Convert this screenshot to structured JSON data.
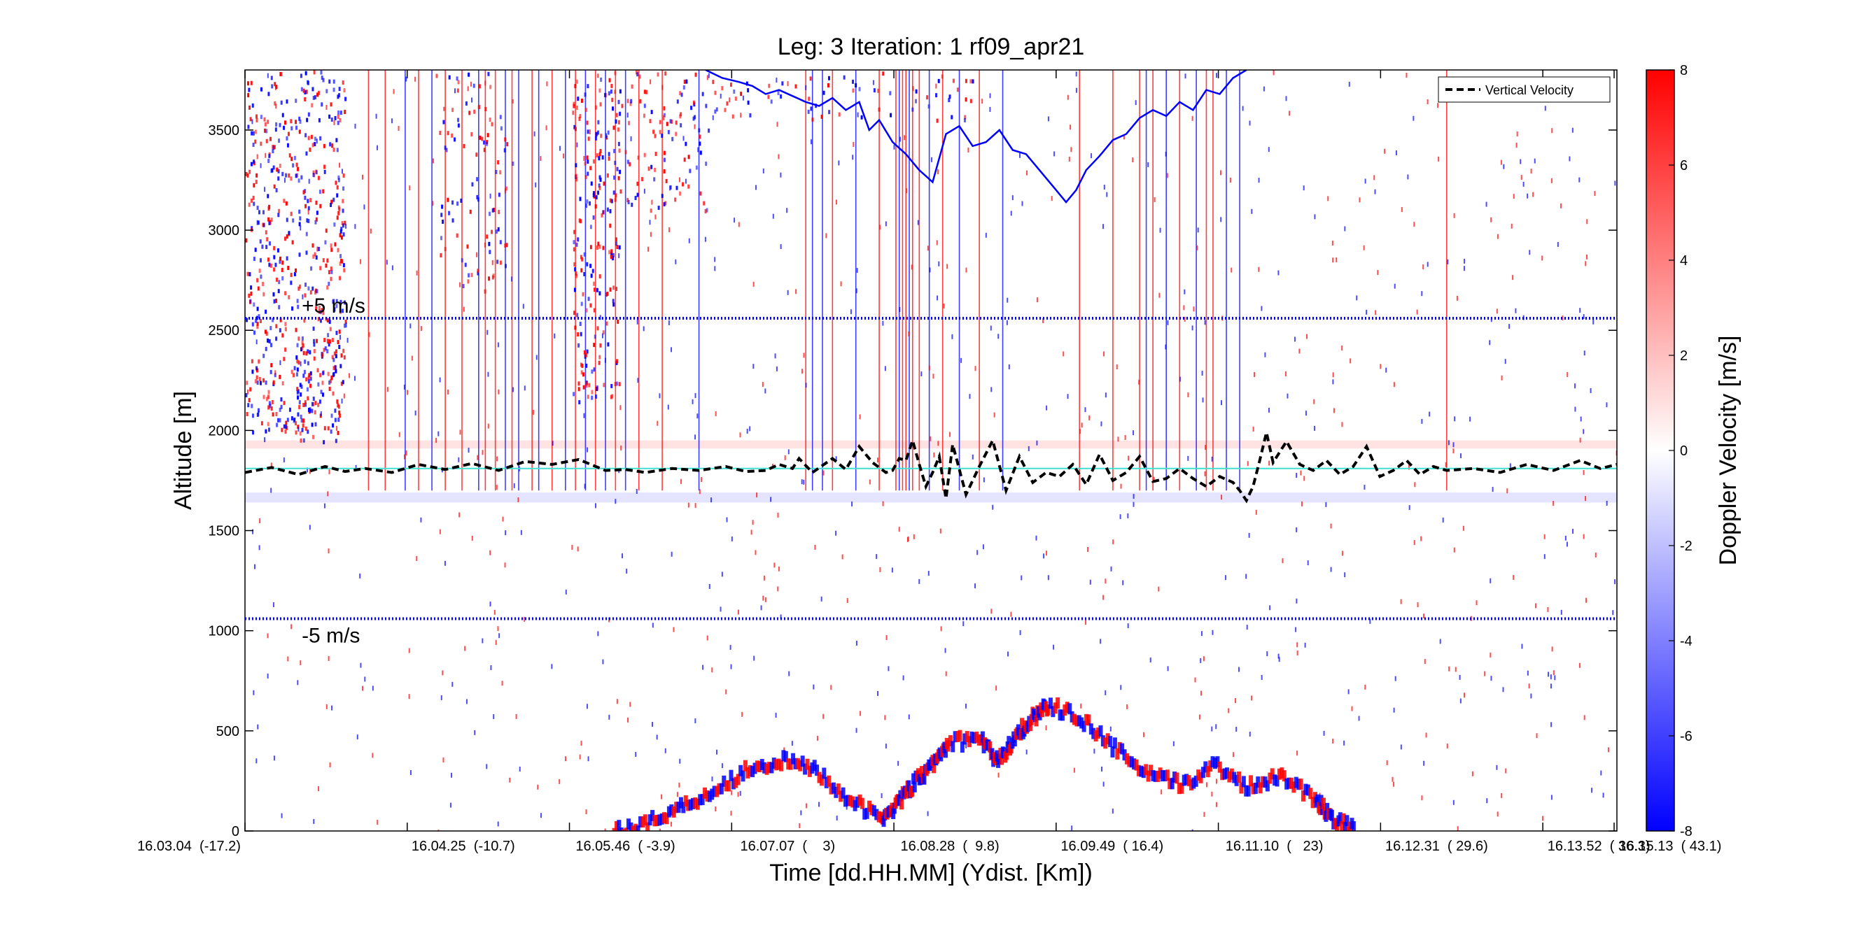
{
  "chart_data": {
    "type": "heatmap",
    "title": "Leg: 3  Iteration: 1  rf09_apr21",
    "xlabel": "Time [dd.HH.MM]    (Ydist. [Km])",
    "ylabel": "Altitude [m]",
    "xlim": [
      0,
      4110
    ],
    "ylim": [
      0,
      3800
    ],
    "x_ticks": [
      {
        "label": "16.03.04  (-17.2)",
        "value": 0
      },
      {
        "label": "16.04.25  (-10.7)",
        "value": 486
      },
      {
        "label": "16.05.46  ( -3.9)",
        "value": 972
      },
      {
        "label": "16.07.07  (    3)",
        "value": 1458
      },
      {
        "label": "16.08.28  (  9.8)",
        "value": 1944
      },
      {
        "label": "16.09.49  ( 16.4)",
        "value": 2430
      },
      {
        "label": "16.11.10  (   23)",
        "value": 2916
      },
      {
        "label": "16.12.31  ( 29.6)",
        "value": 3402
      },
      {
        "label": "16.13.52  ( 36.3)",
        "value": 3888
      },
      {
        "label": "16.15.13  ( 43.1)",
        "value": 4374
      }
    ],
    "y_ticks": [
      0,
      500,
      1000,
      1500,
      2000,
      2500,
      3000,
      3500
    ],
    "colorbar": {
      "label": "Doppler Velocity [m/s]",
      "range": [
        -8,
        8
      ],
      "ticks": [
        -8,
        -6,
        -4,
        -2,
        0,
        2,
        4,
        6,
        8
      ],
      "colors": {
        "low": "#0000ff",
        "mid": "#ffffff",
        "high": "#ff0000"
      }
    },
    "legend": {
      "placement": "top-right",
      "entries": [
        "Vertical Velocity"
      ]
    },
    "annotations": [
      {
        "text": "+5 m/s",
        "y": 2560,
        "color": "#0000ff",
        "style": "dotted"
      },
      {
        "text": "-5 m/s",
        "y": 1060,
        "color": "#0000ff",
        "style": "dotted"
      }
    ],
    "reference_line": {
      "y": 1810,
      "color": "#40e0d0"
    },
    "series": [
      {
        "name": "Vertical Velocity",
        "style": "dashed",
        "color": "#000000",
        "x": [
          0,
          80,
          160,
          240,
          300,
          360,
          440,
          520,
          600,
          680,
          760,
          840,
          920,
          1000,
          1080,
          1140,
          1200,
          1280,
          1360,
          1440,
          1500,
          1560,
          1600,
          1640,
          1660,
          1700,
          1760,
          1800,
          1840,
          1880,
          1920,
          1940,
          1960,
          1980,
          2000,
          2020,
          2040,
          2060,
          2080,
          2100,
          2120,
          2160,
          2200,
          2240,
          2280,
          2320,
          2360,
          2400,
          2440,
          2480,
          2520,
          2560,
          2600,
          2640,
          2680,
          2720,
          2760,
          2800,
          2840,
          2880,
          2920,
          2960,
          2980,
          3000,
          3020,
          3040,
          3060,
          3080,
          3120,
          3160,
          3200,
          3240,
          3280,
          3320,
          3360,
          3400,
          3440,
          3480,
          3520,
          3560,
          3600,
          3680,
          3760,
          3840,
          3920,
          4000,
          4060,
          4110
        ],
        "y": [
          1790,
          1815,
          1780,
          1820,
          1795,
          1810,
          1790,
          1830,
          1805,
          1835,
          1800,
          1845,
          1830,
          1855,
          1800,
          1805,
          1790,
          1810,
          1800,
          1820,
          1795,
          1800,
          1830,
          1810,
          1860,
          1790,
          1860,
          1805,
          1920,
          1840,
          1790,
          1800,
          1860,
          1850,
          1950,
          1830,
          1720,
          1790,
          1870,
          1660,
          1930,
          1680,
          1820,
          1950,
          1700,
          1870,
          1740,
          1790,
          1770,
          1830,
          1730,
          1880,
          1750,
          1790,
          1870,
          1745,
          1760,
          1810,
          1760,
          1720,
          1770,
          1740,
          1700,
          1650,
          1720,
          1850,
          1990,
          1840,
          1945,
          1830,
          1800,
          1850,
          1780,
          1820,
          1920,
          1770,
          1800,
          1850,
          1780,
          1820,
          1800,
          1810,
          1790,
          1830,
          1800,
          1850,
          1810,
          1830
        ]
      },
      {
        "name": "",
        "style": "solid",
        "color": "#0000ff",
        "x": [
          1380,
          1430,
          1480,
          1520,
          1560,
          1600,
          1640,
          1680,
          1720,
          1760,
          1800,
          1840,
          1870,
          1900,
          1940,
          1980,
          2020,
          2060,
          2100,
          2140,
          2180,
          2220,
          2260,
          2300,
          2340,
          2380,
          2420,
          2460,
          2490,
          2520,
          2560,
          2600,
          2640,
          2680,
          2720,
          2760,
          2800,
          2840,
          2880,
          2920,
          2960,
          3000
        ],
        "y": [
          3800,
          3760,
          3740,
          3720,
          3680,
          3700,
          3670,
          3640,
          3620,
          3660,
          3600,
          3640,
          3500,
          3550,
          3440,
          3380,
          3300,
          3240,
          3480,
          3520,
          3420,
          3440,
          3500,
          3400,
          3380,
          3300,
          3220,
          3140,
          3200,
          3300,
          3370,
          3450,
          3480,
          3560,
          3600,
          3570,
          3640,
          3600,
          3700,
          3680,
          3760,
          3800
        ]
      }
    ],
    "echo_regions": [
      {
        "kind": "speckle",
        "x0": 0,
        "x1": 300,
        "y0": 2000,
        "y1": 3800,
        "density": 0.9
      },
      {
        "kind": "speckle",
        "x0": 150,
        "x1": 280,
        "y0": 1950,
        "y1": 2500,
        "density": 0.7
      },
      {
        "kind": "speckle",
        "x0": 570,
        "x1": 800,
        "y0": 2700,
        "y1": 3800,
        "density": 0.35
      },
      {
        "kind": "speckle",
        "x0": 980,
        "x1": 1120,
        "y0": 2150,
        "y1": 3800,
        "density": 0.8
      },
      {
        "kind": "speckle",
        "x0": 1100,
        "x1": 1400,
        "y0": 3100,
        "y1": 3800,
        "density": 0.45
      },
      {
        "kind": "speckle",
        "x0": 1400,
        "x1": 2200,
        "y0": 3550,
        "y1": 3800,
        "density": 0.3
      }
    ],
    "vertical_streaks": {
      "x": [
        370,
        420,
        480,
        520,
        560,
        600,
        650,
        700,
        720,
        750,
        780,
        800,
        820,
        860,
        880,
        920,
        960,
        990,
        1020,
        1050,
        1080,
        1110,
        1140,
        1180,
        1250,
        1360,
        1680,
        1700,
        1730,
        1760,
        1830,
        1900,
        1950,
        1960,
        1970,
        1980,
        1990,
        2000,
        2020,
        2050,
        2090,
        2140,
        2200,
        2270,
        2500,
        2600,
        2680,
        2700,
        2720,
        2760,
        2800,
        2850,
        2880,
        2900,
        2940,
        2980,
        3600
      ],
      "signs": [
        1,
        1,
        -1,
        1,
        -1,
        1,
        1,
        -1,
        1,
        1,
        -1,
        1,
        -1,
        1,
        -1,
        1,
        -1,
        1,
        -1,
        1,
        -1,
        1,
        -1,
        1,
        1,
        -1,
        1,
        -1,
        -1,
        1,
        -1,
        1,
        1,
        -1,
        1,
        1,
        -1,
        1,
        1,
        -1,
        1,
        -1,
        1,
        -1,
        1,
        1,
        1,
        -1,
        1,
        -1,
        1,
        -1,
        1,
        1,
        -1,
        -1,
        1
      ],
      "y0": 1700,
      "y1": 3800
    },
    "surface_echo": {
      "x": [
        1100,
        1200,
        1300,
        1400,
        1500,
        1600,
        1700,
        1800,
        1900,
        1950,
        2000,
        2050,
        2100,
        2200,
        2250,
        2300,
        2350,
        2400,
        2500,
        2600,
        2700,
        2800,
        2900,
        3000,
        3100,
        3200,
        3250,
        3320
      ],
      "y": [
        0,
        40,
        120,
        200,
        310,
        350,
        310,
        160,
        60,
        140,
        240,
        320,
        440,
        460,
        340,
        470,
        560,
        630,
        560,
        410,
        280,
        230,
        330,
        220,
        280,
        160,
        70,
        0
      ]
    }
  }
}
